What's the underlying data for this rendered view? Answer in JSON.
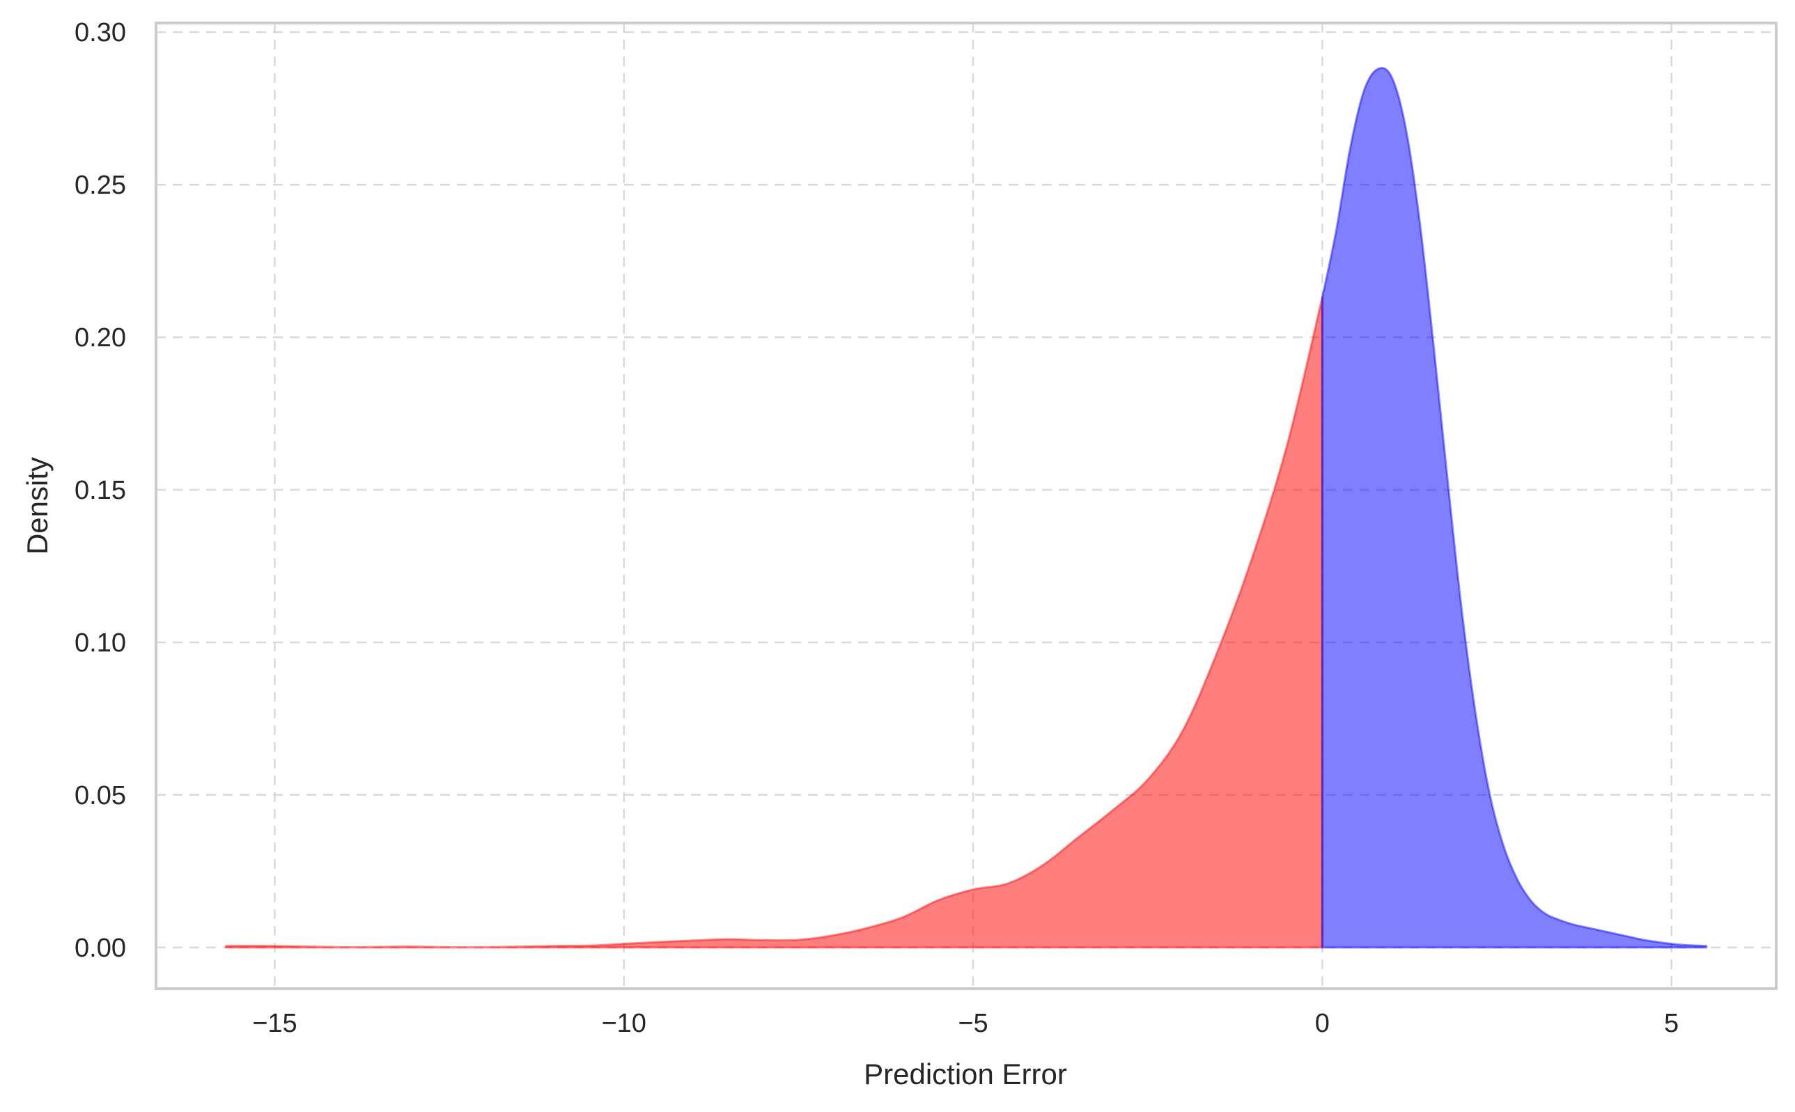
{
  "chart_data": {
    "type": "area",
    "title": "",
    "xlabel": "Prediction Error",
    "ylabel": "Density",
    "xlim": [
      -16.7,
      6.5
    ],
    "ylim": [
      -0.0135,
      0.303
    ],
    "grid": true,
    "legend": "none",
    "x_ticks": [
      -15,
      -10,
      -5,
      0,
      5
    ],
    "x_tick_labels": [
      "−15",
      "−10",
      "−5",
      "0",
      "5"
    ],
    "y_ticks": [
      0.0,
      0.05,
      0.1,
      0.15,
      0.2,
      0.25,
      0.3
    ],
    "y_tick_labels": [
      "0.00",
      "0.05",
      "0.10",
      "0.15",
      "0.20",
      "0.25",
      "0.30"
    ],
    "series": [
      {
        "color": "#ff0000",
        "fill_opacity": 0.5,
        "x": [
          -15.7,
          -15.0,
          -14.0,
          -13.5,
          -13.0,
          -12.5,
          -12.0,
          -11.0,
          -10.5,
          -10.0,
          -9.5,
          -9.0,
          -8.5,
          -8.0,
          -7.5,
          -7.0,
          -6.5,
          -6.0,
          -5.5,
          -5.0,
          -4.5,
          -4.0,
          -3.5,
          -3.0,
          -2.5,
          -2.0,
          -1.5,
          -1.0,
          -0.5,
          0.0
        ],
        "y": [
          0.0005,
          0.0005,
          0.0001,
          0.0002,
          0.0003,
          0.0001,
          0.0001,
          0.0005,
          0.0006,
          0.0012,
          0.0018,
          0.0023,
          0.0027,
          0.0024,
          0.0025,
          0.004,
          0.0065,
          0.01,
          0.0155,
          0.019,
          0.021,
          0.027,
          0.036,
          0.045,
          0.055,
          0.071,
          0.097,
          0.128,
          0.165,
          0.213
        ]
      },
      {
        "color": "#0000ff",
        "fill_opacity": 0.5,
        "x": [
          0.0,
          0.2,
          0.4,
          0.6,
          0.8,
          1.0,
          1.2,
          1.4,
          1.6,
          1.8,
          2.0,
          2.2,
          2.4,
          2.6,
          2.8,
          3.0,
          3.2,
          3.4,
          3.6,
          3.8,
          4.0,
          4.2,
          4.4,
          4.6,
          4.8,
          5.0,
          5.2,
          5.5
        ],
        "y": [
          0.213,
          0.235,
          0.262,
          0.281,
          0.288,
          0.285,
          0.268,
          0.237,
          0.196,
          0.152,
          0.11,
          0.076,
          0.05,
          0.033,
          0.022,
          0.015,
          0.011,
          0.009,
          0.0075,
          0.0065,
          0.0055,
          0.0045,
          0.0035,
          0.0025,
          0.0018,
          0.0012,
          0.0008,
          0.0005
        ]
      }
    ]
  }
}
